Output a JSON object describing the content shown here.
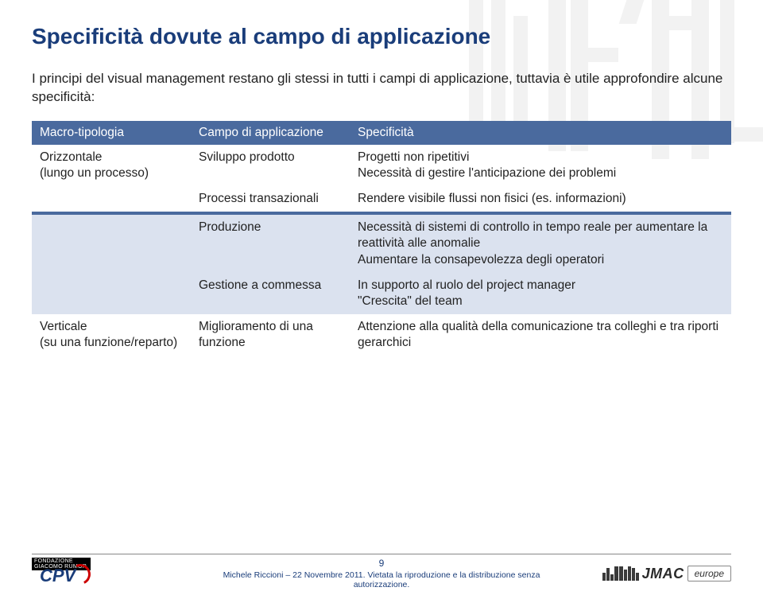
{
  "colors": {
    "heading": "#1a3d7a",
    "table_header_bg": "#4a6a9e",
    "table_band_bg": "#dbe2ef",
    "text": "#222222",
    "footer_text": "#1a3d7a"
  },
  "title": "Specificità dovute al campo di applicazione",
  "intro": "I principi del visual management restano gli stessi in tutti i campi di applicazione, tuttavia è utile approfondire alcune specificità:",
  "table": {
    "headers": [
      "Macro-tipologia",
      "Campo di applicazione",
      "Specificità"
    ],
    "rows": [
      {
        "band": false,
        "macro": "Orizzontale\n(lungo un processo)",
        "campo": "Sviluppo prodotto",
        "spec": "Progetti non ripetitivi\nNecessità di gestire l'anticipazione dei problemi"
      },
      {
        "band": false,
        "macro": "",
        "campo": "Processi transazionali",
        "spec": "Rendere visibile flussi non fisici (es. informazioni)"
      },
      {
        "band": true,
        "macro": "",
        "campo": "Produzione",
        "spec": "Necessità di sistemi di controllo in tempo reale per aumentare la reattività alle anomalie\nAumentare la consapevolezza degli operatori"
      },
      {
        "band": true,
        "macro": "",
        "campo": "Gestione a commessa",
        "spec": "In supporto al ruolo del project manager\n\"Crescita\" del team"
      },
      {
        "band": false,
        "macro": "Verticale\n(su una funzione/reparto)",
        "campo": "Miglioramento di una funzione",
        "spec": "Attenzione alla qualità della comunicazione tra colleghi e tra riporti gerarchici"
      }
    ]
  },
  "footer": {
    "page_number": "9",
    "line": "Michele Riccioni – 22 Novembre 2011. Vietata la riproduzione e la distribuzione senza autorizzazione.",
    "cpv_band": "FONDAZIONE GIACOMO RUMOR",
    "cpv_text": "CPV",
    "jmac_text": "JMAC",
    "europe": "europe"
  }
}
